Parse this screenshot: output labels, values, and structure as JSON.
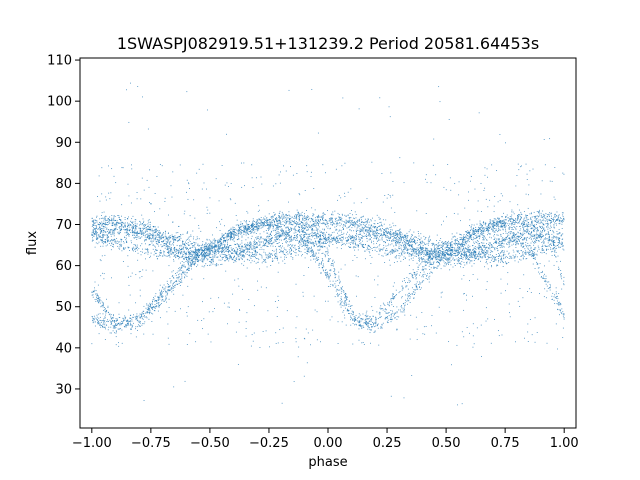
{
  "chart_data": {
    "type": "scatter",
    "title": "1SWASPJ082919.51+131239.2 Period 20581.64453s",
    "xlabel": "phase",
    "ylabel": "flux",
    "xlim": [
      -1.05,
      1.05
    ],
    "ylim": [
      20.5,
      110.5
    ],
    "xticks": [
      -1.0,
      -0.75,
      -0.5,
      -0.25,
      0.0,
      0.25,
      0.5,
      0.75,
      1.0
    ],
    "xtick_labels": [
      "−1.00",
      "−0.75",
      "−0.50",
      "−0.25",
      "0.00",
      "0.25",
      "0.50",
      "0.75",
      "1.00"
    ],
    "yticks": [
      30,
      40,
      50,
      60,
      70,
      80,
      90,
      100,
      110
    ],
    "ytick_labels": [
      "30",
      "40",
      "50",
      "60",
      "70",
      "80",
      "90",
      "100",
      "110"
    ],
    "grid": false,
    "marker_color": "#1f77b4",
    "description_of_series": [
      {
        "points": [
          [
            -1.0,
            69
          ],
          [
            -0.9,
            71
          ],
          [
            -0.75,
            69
          ],
          [
            -0.6,
            64
          ],
          [
            -0.5,
            61
          ],
          [
            -0.4,
            62
          ],
          [
            -0.25,
            66
          ],
          [
            -0.1,
            70
          ],
          [
            0.0,
            71
          ],
          [
            0.1,
            71
          ],
          [
            0.25,
            69
          ],
          [
            0.4,
            64
          ],
          [
            0.5,
            61
          ],
          [
            0.6,
            62
          ],
          [
            0.75,
            66
          ],
          [
            0.9,
            70
          ],
          [
            1.0,
            71
          ]
        ]
      },
      {
        "points": [
          [
            -1.0,
            71
          ],
          [
            -0.9,
            70
          ],
          [
            -0.75,
            67
          ],
          [
            -0.6,
            62
          ],
          [
            -0.5,
            63
          ],
          [
            -0.4,
            68
          ],
          [
            -0.25,
            71
          ],
          [
            -0.1,
            72
          ],
          [
            0.0,
            71
          ],
          [
            0.1,
            70
          ],
          [
            0.25,
            67
          ],
          [
            0.4,
            62
          ],
          [
            0.5,
            63
          ],
          [
            0.6,
            68
          ],
          [
            0.75,
            71
          ],
          [
            0.9,
            72
          ],
          [
            1.0,
            71
          ]
        ]
      },
      {
        "points": [
          [
            -1.0,
            54
          ],
          [
            -0.9,
            46
          ],
          [
            -0.8,
            47
          ],
          [
            -0.65,
            57
          ],
          [
            -0.5,
            65
          ],
          [
            -0.35,
            69
          ],
          [
            -0.2,
            71
          ],
          [
            -0.05,
            68
          ],
          [
            0.05,
            56
          ],
          [
            0.12,
            46
          ],
          [
            0.2,
            47
          ],
          [
            0.35,
            57
          ],
          [
            0.5,
            65
          ],
          [
            0.65,
            69
          ],
          [
            0.8,
            71
          ],
          [
            0.95,
            66
          ],
          [
            1.0,
            55
          ]
        ]
      },
      {
        "points": [
          [
            -1.0,
            47
          ],
          [
            -0.9,
            45
          ],
          [
            -0.8,
            46
          ],
          [
            -0.7,
            52
          ],
          [
            -0.55,
            62
          ],
          [
            -0.4,
            68
          ],
          [
            -0.25,
            70
          ],
          [
            -0.1,
            66
          ],
          [
            0.02,
            56
          ],
          [
            0.1,
            47
          ],
          [
            0.2,
            45
          ],
          [
            0.3,
            49
          ],
          [
            0.45,
            60
          ],
          [
            0.6,
            67
          ],
          [
            0.75,
            70
          ],
          [
            0.85,
            64
          ],
          [
            1.0,
            48
          ]
        ]
      },
      {
        "points": [
          [
            -1.0,
            67
          ],
          [
            -0.85,
            65
          ],
          [
            -0.7,
            63
          ],
          [
            -0.55,
            63
          ],
          [
            -0.4,
            64
          ],
          [
            -0.25,
            66
          ],
          [
            -0.1,
            67
          ],
          [
            0.0,
            67
          ],
          [
            0.15,
            65
          ],
          [
            0.3,
            63
          ],
          [
            0.45,
            63
          ],
          [
            0.6,
            64
          ],
          [
            0.75,
            66
          ],
          [
            0.9,
            67
          ],
          [
            1.0,
            67
          ]
        ]
      },
      {
        "points": [
          [
            -1.0,
            68
          ],
          [
            -0.8,
            68
          ],
          [
            -0.6,
            66
          ],
          [
            -0.4,
            63
          ],
          [
            -0.25,
            62
          ],
          [
            -0.1,
            64
          ],
          [
            0.0,
            66
          ],
          [
            0.2,
            68
          ],
          [
            0.4,
            66
          ],
          [
            0.6,
            63
          ],
          [
            0.75,
            62
          ],
          [
            0.9,
            64
          ],
          [
            1.0,
            66
          ]
        ]
      }
    ],
    "outlier_flux_range": [
      25,
      106
    ]
  }
}
